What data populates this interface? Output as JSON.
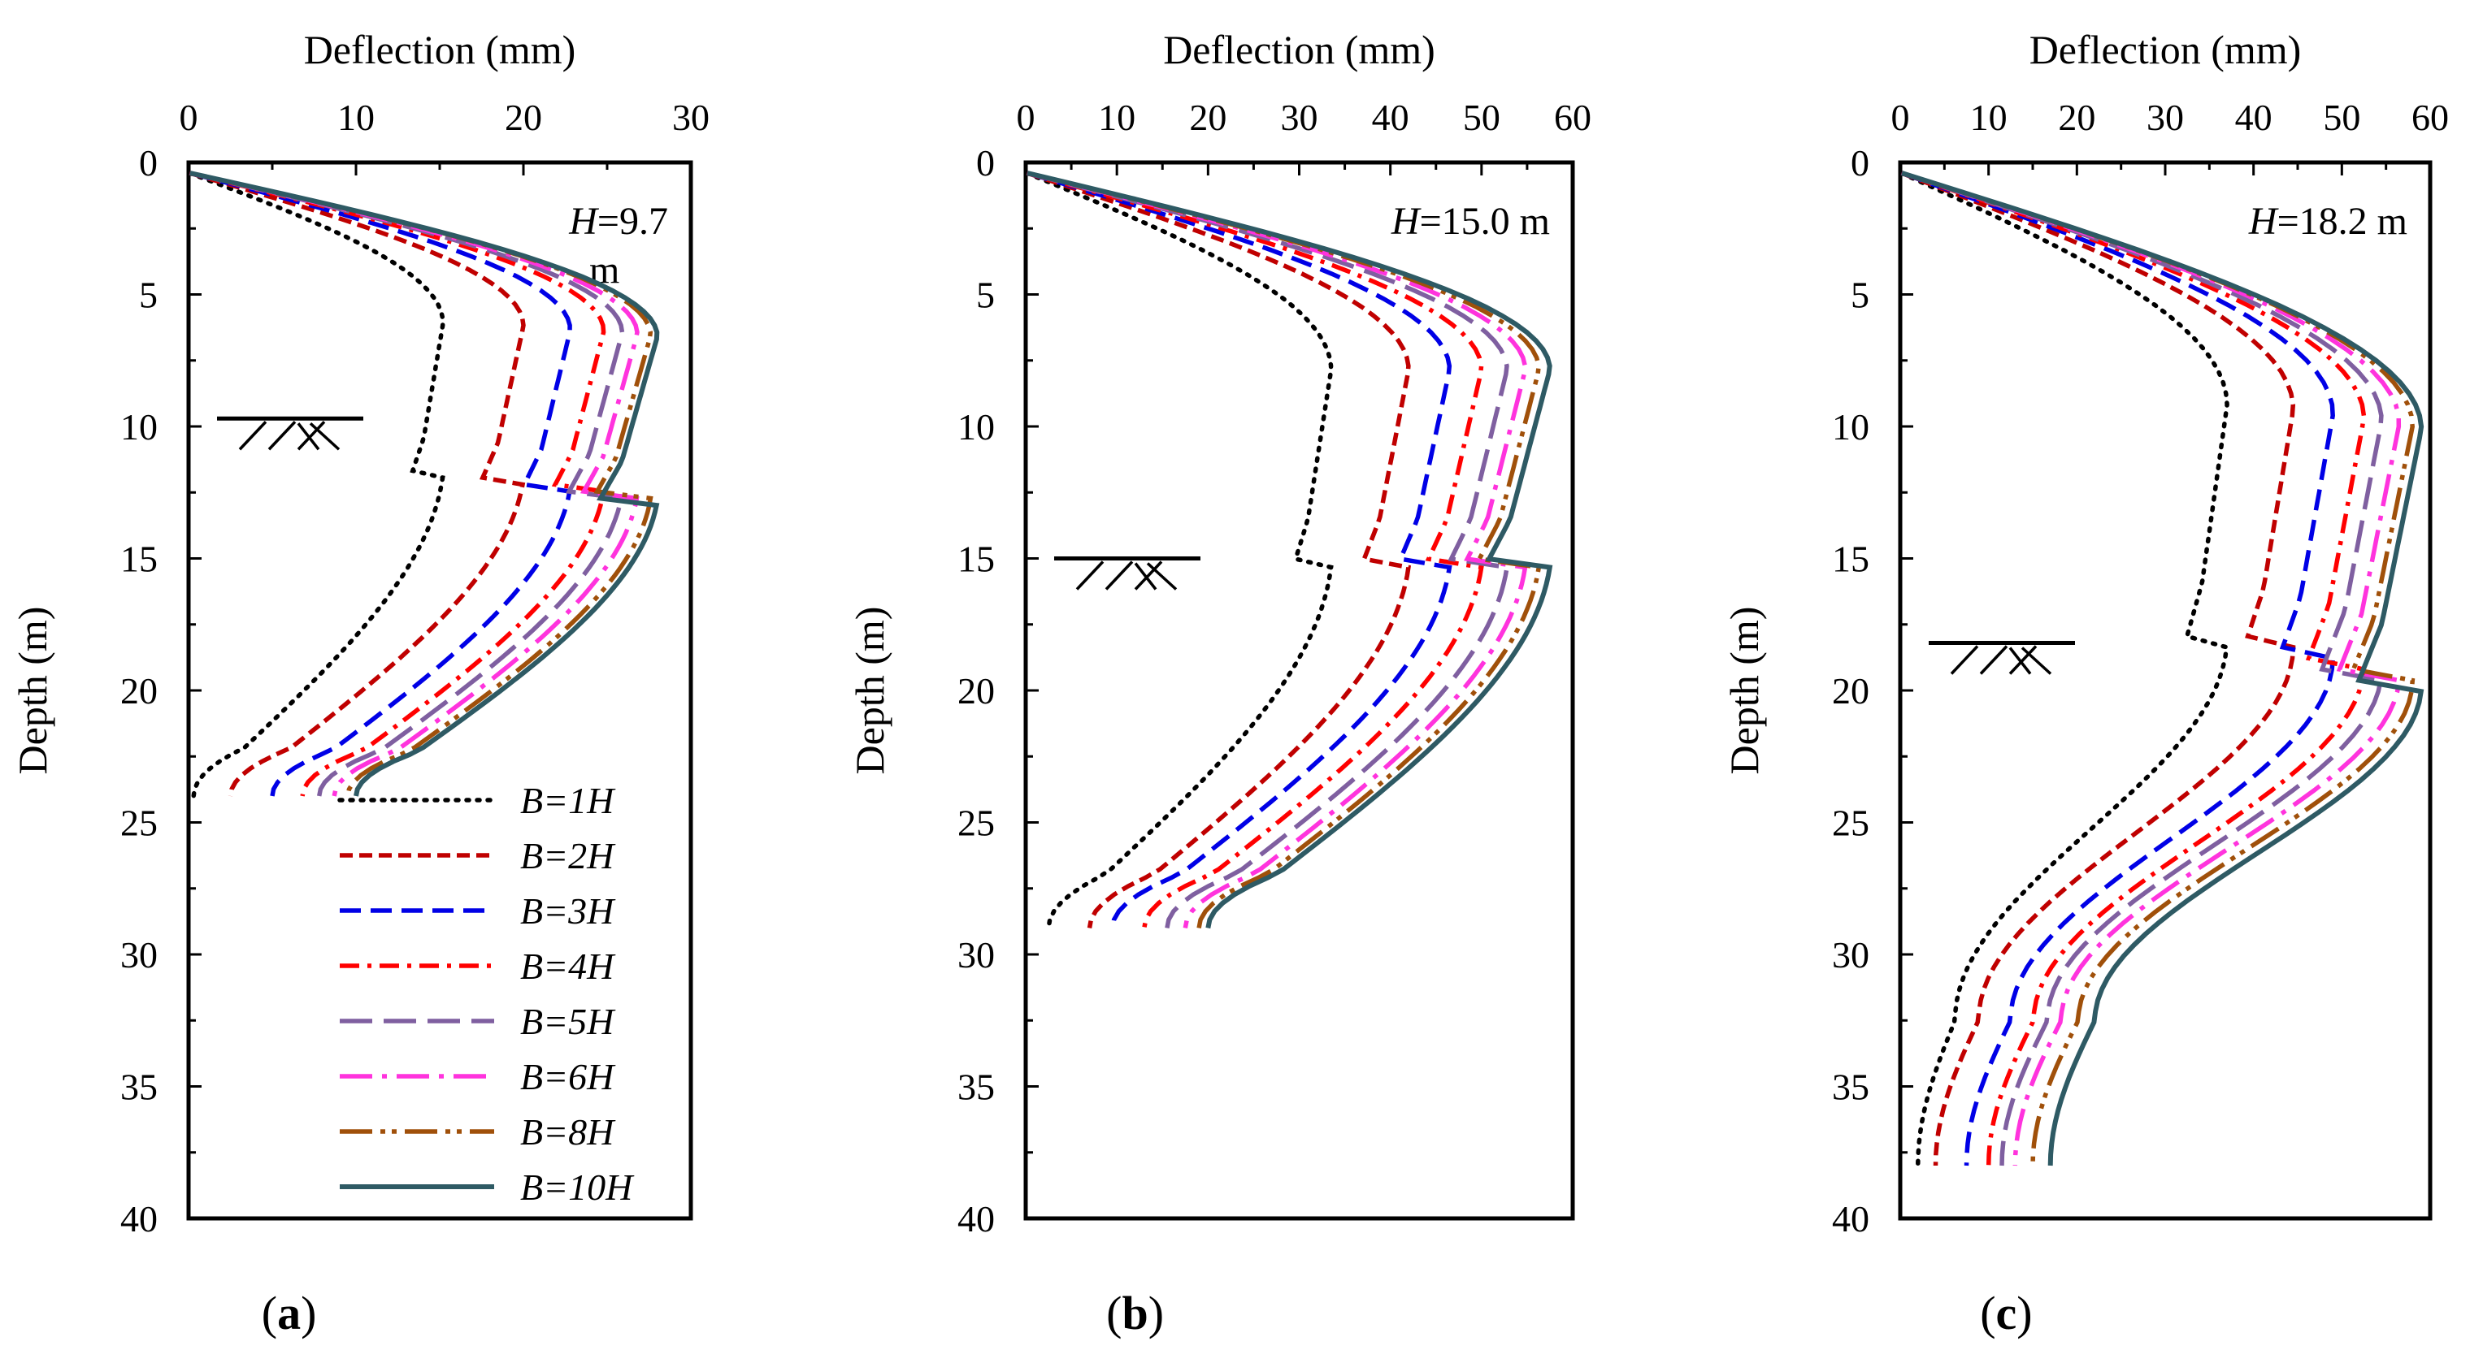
{
  "chart_data": [
    {
      "type": "line",
      "panel_label": "a",
      "xlabel": "Deflection (mm)",
      "ylabel": "Depth (m)",
      "xlim": [
        0,
        30
      ],
      "ylim": [
        0,
        40
      ],
      "x_ticks": [
        0,
        10,
        20,
        30
      ],
      "y_ticks": [
        0,
        5,
        10,
        15,
        20,
        25,
        30,
        35,
        40
      ],
      "annotation": {
        "prefix": "H",
        "suffix": "=9.7 m",
        "excavation_depth": 9.7
      },
      "wall_depth": 24,
      "legend": true,
      "series": [
        {
          "name": "B=1H",
          "peak_deflection": 15.2,
          "peak_depth": 11.8,
          "toe_deflection": 0.3
        },
        {
          "name": "B=2H",
          "peak_deflection": 20.0,
          "peak_depth": 12.0,
          "toe_deflection": 2.5
        },
        {
          "name": "B=3H",
          "peak_deflection": 22.8,
          "peak_depth": 12.3,
          "toe_deflection": 5.0
        },
        {
          "name": "B=4H",
          "peak_deflection": 24.8,
          "peak_depth": 12.4,
          "toe_deflection": 6.8
        },
        {
          "name": "B=5H",
          "peak_deflection": 25.9,
          "peak_depth": 12.5,
          "toe_deflection": 7.8
        },
        {
          "name": "B=6H",
          "peak_deflection": 26.8,
          "peak_depth": 12.6,
          "toe_deflection": 8.7
        },
        {
          "name": "B=8H",
          "peak_deflection": 27.6,
          "peak_depth": 12.7,
          "toe_deflection": 9.5
        },
        {
          "name": "B=10H",
          "peak_deflection": 28.0,
          "peak_depth": 12.8,
          "toe_deflection": 10.0
        }
      ]
    },
    {
      "type": "line",
      "panel_label": "b",
      "xlabel": "Deflection (mm)",
      "ylabel": "Depth (m)",
      "xlim": [
        0,
        60
      ],
      "ylim": [
        0,
        40
      ],
      "x_ticks": [
        0,
        10,
        20,
        30,
        40,
        50,
        60
      ],
      "y_ticks": [
        0,
        5,
        10,
        15,
        20,
        25,
        30,
        35,
        40
      ],
      "annotation": {
        "prefix": "H",
        "suffix": "=15.0 m",
        "excavation_depth": 15.0
      },
      "wall_depth": 29,
      "legend": false,
      "series": [
        {
          "name": "B=1H",
          "peak_deflection": 33.5,
          "peak_depth": 15.3,
          "toe_deflection": 2.5
        },
        {
          "name": "B=2H",
          "peak_deflection": 42.0,
          "peak_depth": 15.3,
          "toe_deflection": 7.0
        },
        {
          "name": "B=3H",
          "peak_deflection": 46.5,
          "peak_depth": 15.3,
          "toe_deflection": 9.5
        },
        {
          "name": "B=4H",
          "peak_deflection": 50.0,
          "peak_depth": 15.3,
          "toe_deflection": 13.0
        },
        {
          "name": "B=5H",
          "peak_deflection": 52.8,
          "peak_depth": 15.3,
          "toe_deflection": 15.5
        },
        {
          "name": "B=6H",
          "peak_deflection": 54.8,
          "peak_depth": 15.3,
          "toe_deflection": 17.5
        },
        {
          "name": "B=8H",
          "peak_deflection": 56.3,
          "peak_depth": 15.3,
          "toe_deflection": 19.0
        },
        {
          "name": "B=10H",
          "peak_deflection": 57.5,
          "peak_depth": 15.3,
          "toe_deflection": 20.0
        }
      ]
    },
    {
      "type": "line",
      "panel_label": "c",
      "xlabel": "Deflection (mm)",
      "ylabel": "Depth (m)",
      "xlim": [
        0,
        60
      ],
      "ylim": [
        0,
        40
      ],
      "x_ticks": [
        0,
        10,
        20,
        30,
        40,
        50,
        60
      ],
      "y_ticks": [
        0,
        5,
        10,
        15,
        20,
        25,
        30,
        35,
        40
      ],
      "annotation": {
        "prefix": "H",
        "suffix": "=18.2 m",
        "excavation_depth": 18.2
      },
      "wall_depth": 38,
      "legend": false,
      "series": [
        {
          "name": "B=1H",
          "peak_deflection": 37.0,
          "peak_depth": 18.0,
          "toe_deflection": 2.0
        },
        {
          "name": "B=2H",
          "peak_deflection": 44.5,
          "peak_depth": 18.3,
          "toe_deflection": 4.0
        },
        {
          "name": "B=3H",
          "peak_deflection": 49.0,
          "peak_depth": 18.7,
          "toe_deflection": 7.5
        },
        {
          "name": "B=4H",
          "peak_deflection": 52.5,
          "peak_depth": 19.0,
          "toe_deflection": 10.0
        },
        {
          "name": "B=5H",
          "peak_deflection": 54.5,
          "peak_depth": 19.2,
          "toe_deflection": 11.5
        },
        {
          "name": "B=6H",
          "peak_deflection": 56.5,
          "peak_depth": 19.4,
          "toe_deflection": 13.0
        },
        {
          "name": "B=8H",
          "peak_deflection": 58.0,
          "peak_depth": 19.6,
          "toe_deflection": 15.0
        },
        {
          "name": "B=10H",
          "peak_deflection": 59.0,
          "peak_depth": 19.8,
          "toe_deflection": 17.0
        }
      ]
    }
  ],
  "series_style": [
    {
      "name": "B=1H",
      "color": "#000000",
      "dash": "dot"
    },
    {
      "name": "B=2H",
      "color": "#c00000",
      "dash": "short-dash"
    },
    {
      "name": "B=3H",
      "color": "#0000e6",
      "dash": "dash"
    },
    {
      "name": "B=4H",
      "color": "#ff0000",
      "dash": "dash-dot"
    },
    {
      "name": "B=5H",
      "color": "#7f5fa0",
      "dash": "long-dash"
    },
    {
      "name": "B=6H",
      "color": "#ff33dd",
      "dash": "long-dash-dot"
    },
    {
      "name": "B=8H",
      "color": "#a0500a",
      "dash": "long-dash-dot-dot"
    },
    {
      "name": "B=10H",
      "color": "#2e5a64",
      "dash": "solid"
    }
  ]
}
